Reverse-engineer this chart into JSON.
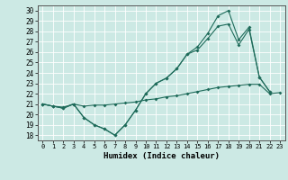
{
  "xlabel": "Humidex (Indice chaleur)",
  "xlim": [
    -0.5,
    23.5
  ],
  "ylim": [
    17.5,
    30.5
  ],
  "yticks": [
    18,
    19,
    20,
    21,
    22,
    23,
    24,
    25,
    26,
    27,
    28,
    29,
    30
  ],
  "xticks": [
    0,
    1,
    2,
    3,
    4,
    5,
    6,
    7,
    8,
    9,
    10,
    11,
    12,
    13,
    14,
    15,
    16,
    17,
    18,
    19,
    20,
    21,
    22,
    23
  ],
  "bg_color": "#cce9e4",
  "grid_color": "#b0d8d0",
  "line_color": "#1e6b5a",
  "line1_x": [
    0,
    1,
    2,
    3,
    4,
    5,
    6,
    7,
    8,
    9,
    10,
    11,
    12,
    13,
    14,
    15,
    16,
    17,
    18,
    19,
    20,
    21,
    22,
    23
  ],
  "line1_y": [
    21.0,
    20.8,
    20.7,
    21.0,
    20.8,
    20.9,
    20.9,
    21.0,
    21.1,
    21.2,
    21.4,
    21.5,
    21.7,
    21.8,
    22.0,
    22.2,
    22.4,
    22.6,
    22.7,
    22.8,
    22.9,
    22.9,
    22.0,
    22.1
  ],
  "line2_x": [
    0,
    1,
    2,
    3,
    4,
    5,
    6,
    7,
    8,
    9,
    10,
    11,
    12,
    13,
    14,
    15,
    16,
    17,
    18,
    19,
    20,
    21,
    22
  ],
  "line2_y": [
    21.0,
    20.8,
    20.6,
    21.0,
    19.7,
    19.0,
    18.6,
    18.0,
    19.0,
    20.4,
    22.0,
    23.0,
    23.5,
    24.4,
    25.8,
    26.2,
    27.3,
    28.5,
    28.7,
    26.7,
    28.2,
    23.6,
    22.2
  ],
  "line3_x": [
    0,
    1,
    2,
    3,
    4,
    5,
    6,
    7,
    8,
    9,
    10,
    11,
    12,
    13,
    14,
    15,
    16,
    17,
    18,
    19,
    20,
    21,
    22
  ],
  "line3_y": [
    21.0,
    20.8,
    20.6,
    21.0,
    19.7,
    19.0,
    18.6,
    18.0,
    19.0,
    20.4,
    22.0,
    23.0,
    23.5,
    24.4,
    25.8,
    26.5,
    27.8,
    29.5,
    30.0,
    27.2,
    28.4,
    23.6,
    22.2
  ]
}
